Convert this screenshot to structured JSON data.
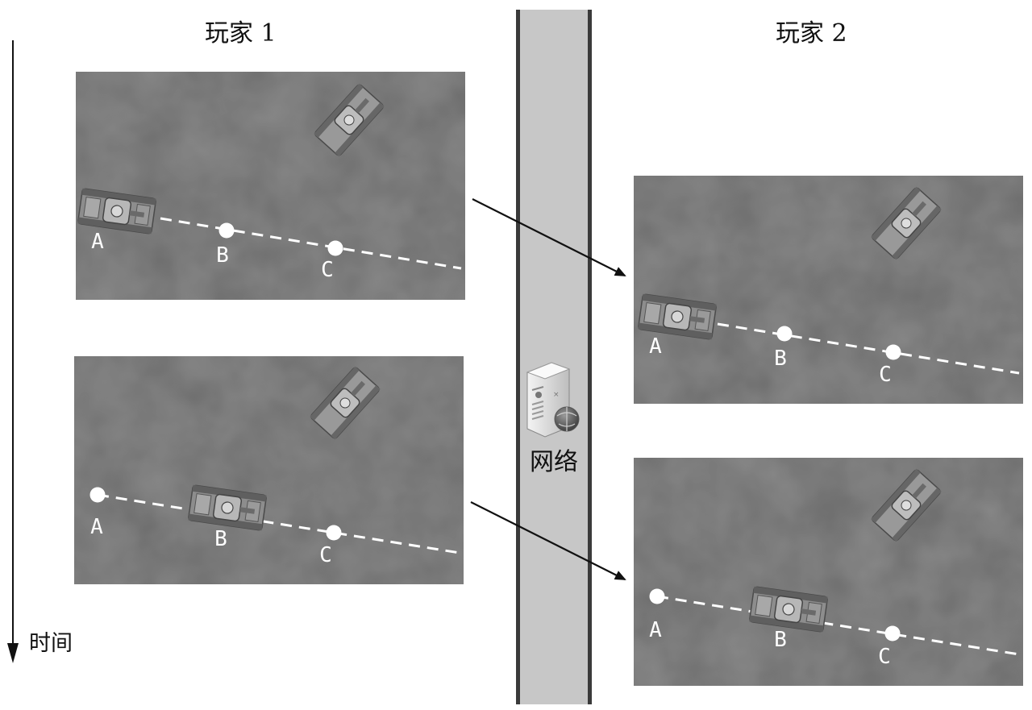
{
  "titles": {
    "player1": "玩家 1",
    "player2": "玩家 2"
  },
  "time_axis": {
    "label": "时间"
  },
  "network": {
    "label": "网络"
  },
  "points": {
    "a": "A",
    "b": "B",
    "c": "C"
  },
  "colors": {
    "ground": "#777777",
    "path": "#ffffff",
    "network_column": "#c7c7c7",
    "network_border": "#3a3a3a",
    "arrow": "#111111"
  }
}
